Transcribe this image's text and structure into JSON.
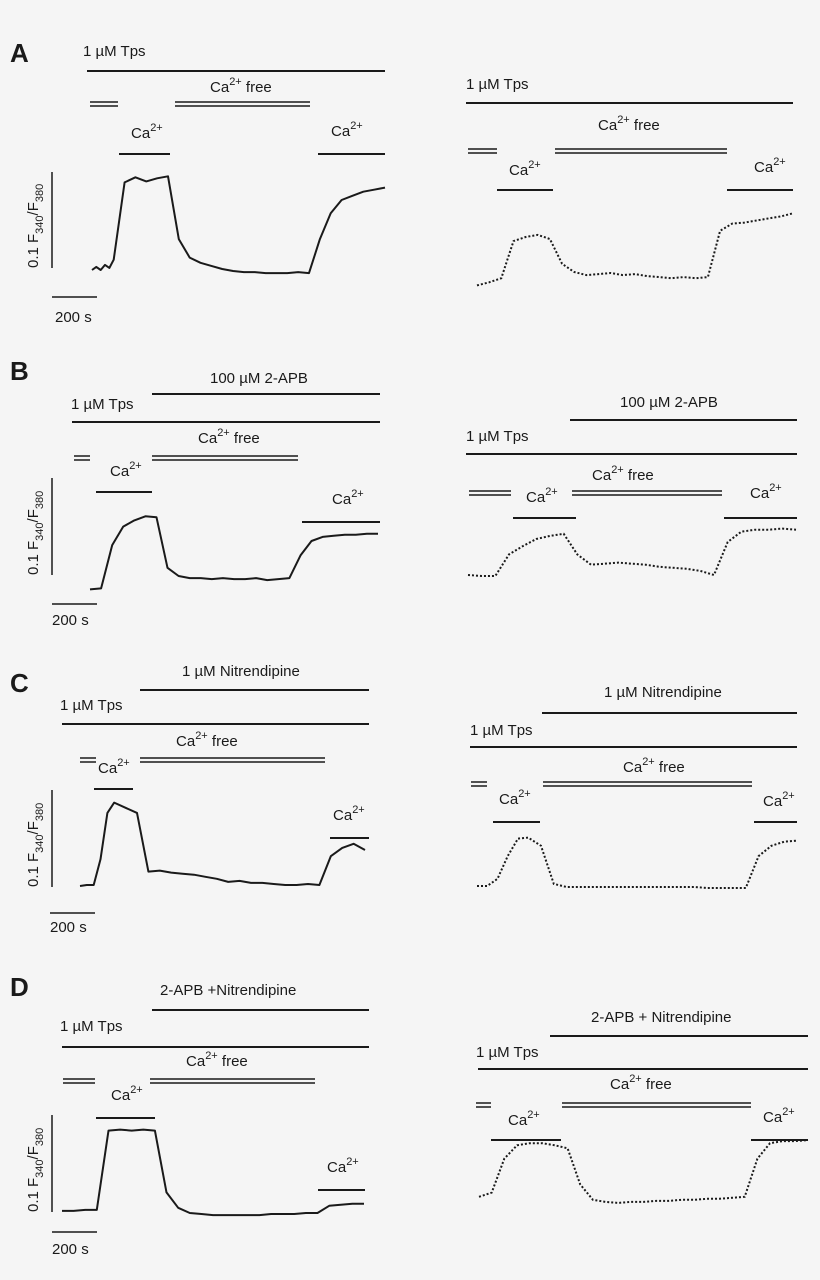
{
  "panel_labels": [
    "A",
    "B",
    "C",
    "D"
  ],
  "texts": {
    "tps": "1 µM Tps",
    "ca_free": "Ca2+ free",
    "ca": "Ca2+",
    "apb": "100 µM 2-APB",
    "nitrendipine": "1 µM Nitrendipine",
    "combo_left": "2-APB +Nitrendipine",
    "combo_right": "2-APB + Nitrendipine",
    "ylabel": "0.1 F340/F380",
    "scalebar": "200 s"
  },
  "chart_data": [
    {
      "panel": "A",
      "side": "left",
      "type": "line",
      "line_style": "solid",
      "x": [
        0,
        20,
        40,
        60,
        80,
        100,
        150,
        200,
        250,
        300,
        350,
        400,
        450,
        500,
        550,
        600,
        650,
        700,
        750,
        800,
        850,
        900,
        950,
        1000,
        1050,
        1100,
        1150,
        1200,
        1250,
        1300,
        1350
      ],
      "y": [
        0.0,
        0.003,
        0.0,
        0.005,
        0.002,
        0.01,
        0.085,
        0.09,
        0.086,
        0.089,
        0.091,
        0.03,
        0.012,
        0.007,
        0.004,
        0.001,
        -0.001,
        -0.002,
        -0.002,
        -0.003,
        -0.003,
        -0.003,
        -0.002,
        -0.003,
        0.03,
        0.055,
        0.068,
        0.072,
        0.076,
        0.078,
        0.08
      ]
    },
    {
      "panel": "A",
      "side": "right",
      "type": "line",
      "line_style": "dotted",
      "x": [
        0,
        50,
        100,
        150,
        200,
        250,
        300,
        350,
        400,
        450,
        500,
        550,
        600,
        650,
        700,
        750,
        800,
        850,
        900,
        950,
        1000,
        1050,
        1100,
        1150,
        1200,
        1250,
        1300
      ],
      "y": [
        -0.013,
        -0.01,
        -0.006,
        0.03,
        0.034,
        0.036,
        0.032,
        0.008,
        0.0,
        -0.003,
        -0.002,
        -0.001,
        -0.003,
        -0.002,
        -0.004,
        -0.005,
        -0.006,
        -0.005,
        -0.006,
        -0.005,
        0.04,
        0.047,
        0.048,
        0.05,
        0.052,
        0.054,
        0.057
      ]
    },
    {
      "panel": "B",
      "side": "left",
      "type": "line",
      "line_style": "solid",
      "x": [
        0,
        50,
        100,
        150,
        200,
        250,
        300,
        350,
        400,
        450,
        500,
        550,
        600,
        650,
        700,
        750,
        800,
        850,
        900,
        950,
        1000,
        1050,
        1100,
        1150,
        1200,
        1250,
        1300
      ],
      "y": [
        -0.013,
        -0.012,
        0.03,
        0.048,
        0.054,
        0.058,
        0.057,
        0.008,
        0.0,
        -0.002,
        -0.002,
        -0.003,
        -0.002,
        -0.003,
        -0.003,
        -0.002,
        -0.004,
        -0.003,
        -0.002,
        0.02,
        0.034,
        0.038,
        0.039,
        0.04,
        0.04,
        0.041,
        0.041
      ]
    },
    {
      "panel": "B",
      "side": "right",
      "type": "line",
      "line_style": "dotted",
      "x": [
        0,
        50,
        100,
        150,
        200,
        250,
        300,
        350,
        400,
        450,
        500,
        550,
        600,
        650,
        700,
        750,
        800,
        850,
        900,
        950,
        1000,
        1050,
        1100,
        1150,
        1200
      ],
      "y": [
        0.0,
        -0.001,
        -0.001,
        0.02,
        0.028,
        0.035,
        0.038,
        0.04,
        0.02,
        0.01,
        0.011,
        0.012,
        0.011,
        0.01,
        0.008,
        0.007,
        0.006,
        0.004,
        0.0,
        0.032,
        0.042,
        0.044,
        0.044,
        0.045,
        0.044
      ]
    },
    {
      "panel": "C",
      "side": "left",
      "type": "line",
      "line_style": "solid",
      "x": [
        0,
        30,
        60,
        90,
        120,
        150,
        200,
        250,
        300,
        350,
        400,
        450,
        500,
        550,
        600,
        650,
        700,
        750,
        800,
        850,
        900,
        950,
        1000,
        1050,
        1100,
        1150,
        1200,
        1250
      ],
      "y": [
        -0.001,
        0.0,
        0.0,
        0.025,
        0.07,
        0.08,
        0.075,
        0.07,
        0.013,
        0.014,
        0.012,
        0.011,
        0.01,
        0.008,
        0.006,
        0.003,
        0.004,
        0.002,
        0.002,
        0.001,
        0.0,
        0.0,
        0.001,
        0.0,
        0.028,
        0.036,
        0.04,
        0.034
      ]
    },
    {
      "panel": "C",
      "side": "right",
      "type": "line",
      "line_style": "dotted",
      "x": [
        0,
        40,
        80,
        120,
        160,
        200,
        250,
        300,
        350,
        400,
        450,
        500,
        550,
        600,
        650,
        700,
        750,
        800,
        850,
        900,
        950,
        1000,
        1050,
        1100,
        1150,
        1200,
        1250
      ],
      "y": [
        0.001,
        0.001,
        0.008,
        0.03,
        0.047,
        0.048,
        0.04,
        0.003,
        0.0,
        0.0,
        0.0,
        0.0,
        0.0,
        0.0,
        0.0,
        0.0,
        0.0,
        0.0,
        0.0,
        -0.001,
        -0.001,
        -0.001,
        -0.001,
        0.03,
        0.04,
        0.044,
        0.045
      ]
    },
    {
      "panel": "D",
      "side": "left",
      "type": "line",
      "line_style": "solid",
      "x": [
        0,
        50,
        100,
        150,
        200,
        250,
        300,
        350,
        400,
        450,
        500,
        550,
        600,
        650,
        700,
        750,
        800,
        850,
        900,
        950,
        1000,
        1050,
        1100,
        1150,
        1200,
        1250,
        1300
      ],
      "y": [
        0.002,
        0.002,
        0.003,
        0.003,
        0.08,
        0.081,
        0.08,
        0.081,
        0.08,
        0.02,
        0.005,
        0.0,
        -0.001,
        -0.002,
        -0.002,
        -0.002,
        -0.002,
        -0.002,
        -0.001,
        -0.001,
        -0.001,
        0.0,
        0.0,
        0.007,
        0.008,
        0.009,
        0.009
      ]
    },
    {
      "panel": "D",
      "side": "right",
      "type": "line",
      "line_style": "dotted",
      "x": [
        0,
        50,
        100,
        150,
        200,
        250,
        300,
        350,
        400,
        450,
        500,
        550,
        600,
        650,
        700,
        750,
        800,
        850,
        900,
        950,
        1000,
        1050,
        1100,
        1150,
        1200,
        1250,
        1300
      ],
      "y": [
        0.008,
        0.012,
        0.045,
        0.058,
        0.06,
        0.06,
        0.058,
        0.055,
        0.02,
        0.005,
        0.003,
        0.002,
        0.003,
        0.003,
        0.004,
        0.004,
        0.005,
        0.005,
        0.006,
        0.006,
        0.007,
        0.008,
        0.045,
        0.06,
        0.062,
        0.062,
        0.063
      ]
    }
  ]
}
